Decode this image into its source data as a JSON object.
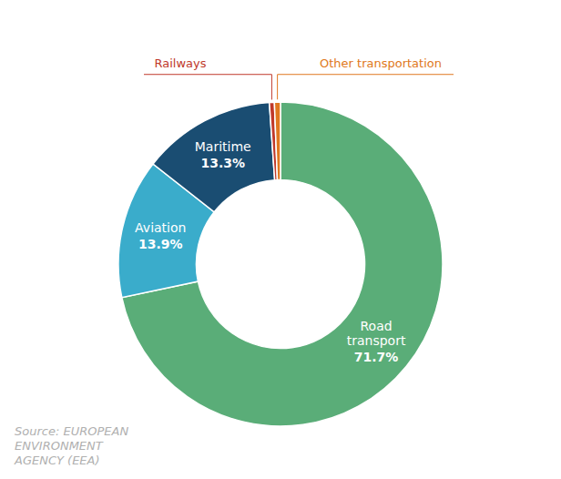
{
  "chart_data": {
    "type": "donut",
    "categories": [
      "Road transport",
      "Aviation",
      "Maritime",
      "Railways",
      "Other transportation"
    ],
    "values": [
      71.7,
      13.9,
      13.3,
      0.5,
      0.6
    ],
    "value_labels": [
      "71.7%",
      "13.9%",
      "13.3%",
      null,
      null
    ],
    "colors": [
      "#5aad78",
      "#3aaccb",
      "#1a4d72",
      "#c0392b",
      "#e07820"
    ],
    "data_labels": true,
    "annotations": [
      "Source: EUROPEAN\nENVIRONMENT\nAGENCY (EEA)"
    ]
  }
}
